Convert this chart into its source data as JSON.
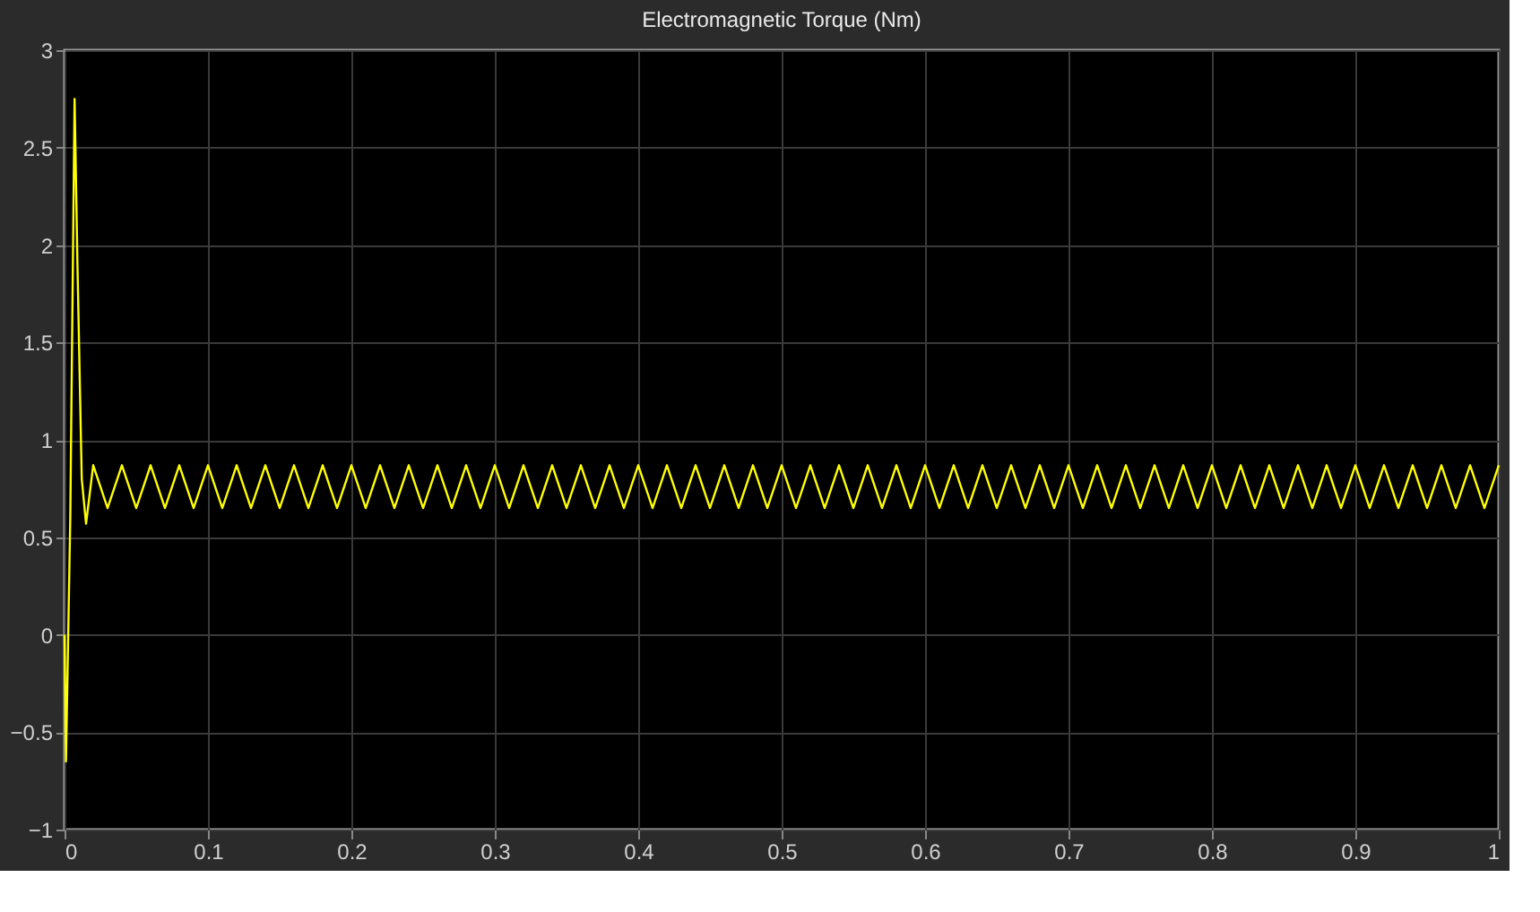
{
  "chart_data": {
    "type": "line",
    "title": "Electromagnetic Torque (Nm)",
    "x": [
      0,
      0.001,
      0.004,
      0.007,
      0.009,
      0.012,
      0.015,
      0.018,
      0.02,
      0.03,
      0.04,
      0.05,
      0.06,
      0.07,
      0.08,
      0.09,
      0.1,
      0.11,
      0.12,
      0.13,
      0.14,
      0.15,
      0.16,
      0.17,
      0.18,
      0.19,
      0.2,
      0.21,
      0.22,
      0.23,
      0.24,
      0.25,
      0.26,
      0.27,
      0.28,
      0.29,
      0.3,
      0.31,
      0.32,
      0.33,
      0.34,
      0.35,
      0.36,
      0.37,
      0.38,
      0.39,
      0.4,
      0.41,
      0.42,
      0.43,
      0.44,
      0.45,
      0.46,
      0.47,
      0.48,
      0.49,
      0.5,
      0.51,
      0.52,
      0.53,
      0.54,
      0.55,
      0.56,
      0.57,
      0.58,
      0.59,
      0.6,
      0.61,
      0.62,
      0.63,
      0.64,
      0.65,
      0.66,
      0.67,
      0.68,
      0.69,
      0.7,
      0.71,
      0.72,
      0.73,
      0.74,
      0.75,
      0.76,
      0.77,
      0.78,
      0.79,
      0.8,
      0.81,
      0.82,
      0.83,
      0.84,
      0.85,
      0.86,
      0.87,
      0.88,
      0.89,
      0.9,
      0.91,
      0.92,
      0.93,
      0.94,
      0.95,
      0.96,
      0.97,
      0.98,
      0.99,
      1.0
    ],
    "series": [
      {
        "color": "#ffff00",
        "values": [
          0,
          -0.65,
          0.6,
          2.75,
          1.9,
          0.8,
          0.57,
          0.75,
          0.87,
          0.65,
          0.87,
          0.65,
          0.87,
          0.65,
          0.87,
          0.65,
          0.87,
          0.65,
          0.87,
          0.65,
          0.87,
          0.65,
          0.87,
          0.65,
          0.87,
          0.65,
          0.87,
          0.65,
          0.87,
          0.65,
          0.87,
          0.65,
          0.87,
          0.65,
          0.87,
          0.65,
          0.87,
          0.65,
          0.87,
          0.65,
          0.87,
          0.65,
          0.87,
          0.65,
          0.87,
          0.65,
          0.87,
          0.65,
          0.87,
          0.65,
          0.87,
          0.65,
          0.87,
          0.65,
          0.87,
          0.65,
          0.87,
          0.65,
          0.87,
          0.65,
          0.87,
          0.65,
          0.87,
          0.65,
          0.87,
          0.65,
          0.87,
          0.65,
          0.87,
          0.65,
          0.87,
          0.65,
          0.87,
          0.65,
          0.87,
          0.65,
          0.87,
          0.65,
          0.87,
          0.65,
          0.87,
          0.65,
          0.87,
          0.65,
          0.87,
          0.65,
          0.87,
          0.65,
          0.87,
          0.65,
          0.87,
          0.65,
          0.87,
          0.65,
          0.87,
          0.65,
          0.87,
          0.65,
          0.87,
          0.65,
          0.87,
          0.65,
          0.87,
          0.65,
          0.87,
          0.65,
          0.87
        ]
      }
    ],
    "xlim": [
      0,
      1
    ],
    "xticks": [
      0,
      0.1,
      0.2,
      0.3,
      0.4,
      0.5,
      0.6,
      0.7,
      0.8,
      0.9,
      1
    ],
    "ylim": [
      -1,
      3
    ],
    "yticks": [
      -1,
      -0.5,
      0,
      0.5,
      1,
      1.5,
      2,
      2.5,
      3
    ],
    "grid": true
  }
}
